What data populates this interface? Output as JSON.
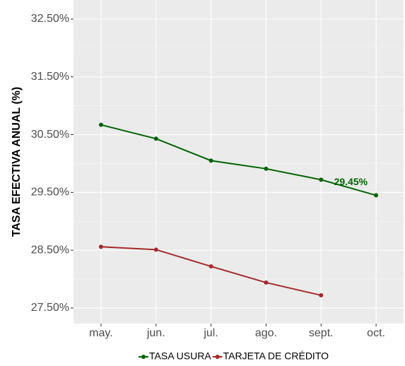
{
  "chart_data": {
    "type": "line",
    "y_label": "TASA EFECTIVA ANUAL (%)",
    "categories": [
      "may.",
      "jun.",
      "jul.",
      "ago.",
      "sept.",
      "oct."
    ],
    "series": [
      {
        "name": "TASA USURA",
        "color": "#006400",
        "values": [
          30.67,
          30.43,
          30.05,
          29.91,
          29.72,
          29.45
        ],
        "value_labels": [
          null,
          null,
          null,
          null,
          null,
          "29.45%"
        ]
      },
      {
        "name": "TARJETA DE CRÉDITO",
        "color": "#a52a2a",
        "values": [
          28.56,
          28.51,
          28.22,
          27.94,
          27.72,
          null
        ]
      }
    ],
    "ylim": [
      27.23,
      32.83
    ],
    "yticks": [
      {
        "value": 27.5,
        "label": "27.50%"
      },
      {
        "value": 28.5,
        "label": "28.50%"
      },
      {
        "value": 29.5,
        "label": "29.50%"
      },
      {
        "value": 30.5,
        "label": "30.50%"
      },
      {
        "value": 31.5,
        "label": "31.50%"
      },
      {
        "value": 32.5,
        "label": "32.50%"
      }
    ],
    "grid": true,
    "legend": "bottom"
  }
}
